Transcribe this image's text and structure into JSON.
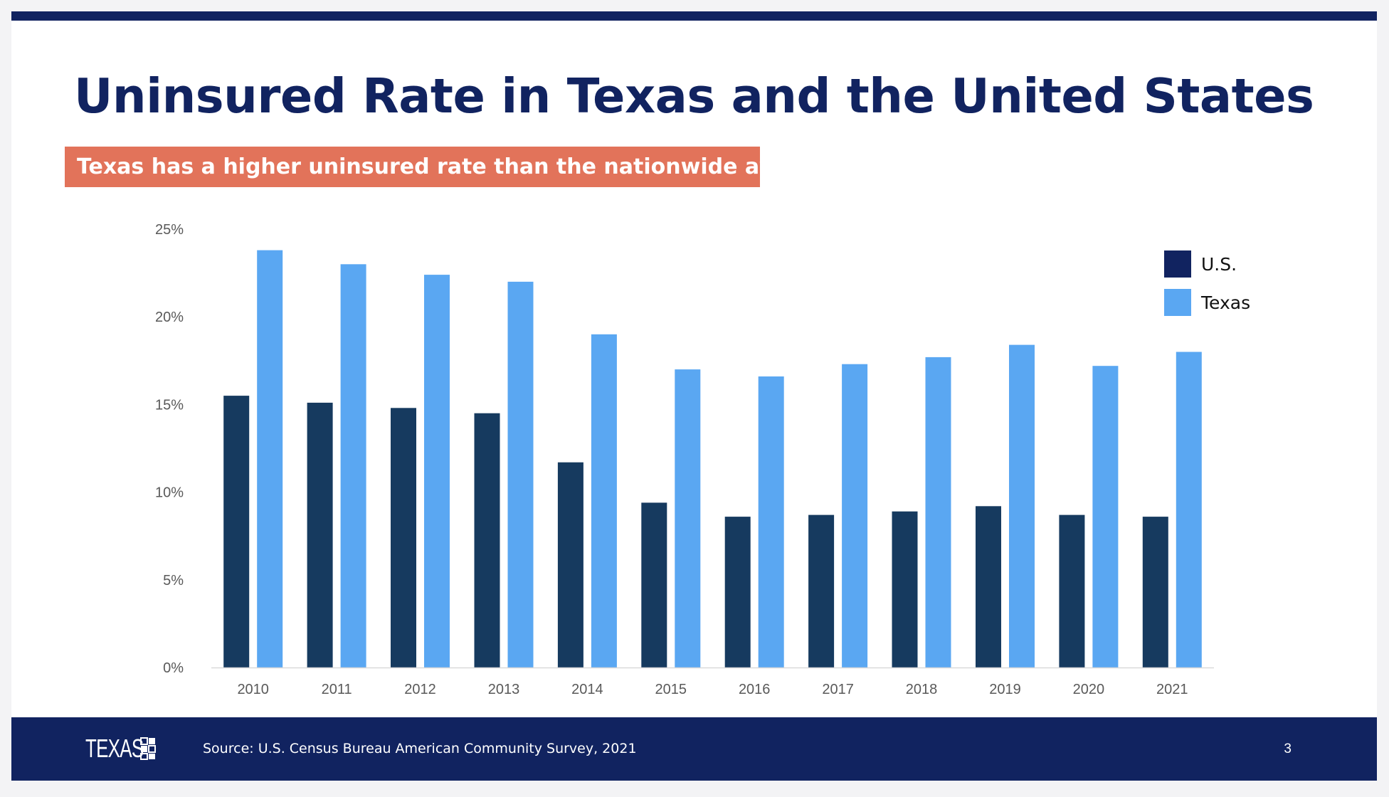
{
  "slide": {
    "title": "Uninsured Rate in Texas and the United States",
    "subtitle": "Texas has a higher uninsured rate than the nationwide average"
  },
  "colors": {
    "brand_navy": "#112360",
    "banner_coral": "#e2735a",
    "us_bar": "#163a5f",
    "texas_bar": "#5aa7f2",
    "legend_us": "#112360",
    "legend_texas": "#5aa7f2"
  },
  "chart_data": {
    "type": "bar",
    "categories": [
      "2010",
      "2011",
      "2012",
      "2013",
      "2014",
      "2015",
      "2016",
      "2017",
      "2018",
      "2019",
      "2020",
      "2021"
    ],
    "series": [
      {
        "name": "U.S.",
        "values": [
          15.5,
          15.1,
          14.8,
          14.5,
          11.7,
          9.4,
          8.6,
          8.7,
          8.9,
          9.2,
          8.7,
          8.6
        ]
      },
      {
        "name": "Texas",
        "values": [
          23.8,
          23.0,
          22.4,
          22.0,
          19.0,
          17.0,
          16.6,
          17.3,
          17.7,
          18.4,
          17.2,
          18.0
        ]
      }
    ],
    "ylim": [
      0,
      25
    ],
    "yticks": [
      0,
      5,
      10,
      15,
      20,
      25
    ],
    "ytick_labels": [
      "0%",
      "5%",
      "10%",
      "15%",
      "20%",
      "25%"
    ],
    "grid": false,
    "legend_position": "top-right"
  },
  "footer": {
    "logo_text": "TEXAS",
    "logo_icon": "texas-2036-mark-icon",
    "source": "Source: U.S. Census Bureau American Community Survey, 2021",
    "page_number": "3"
  }
}
